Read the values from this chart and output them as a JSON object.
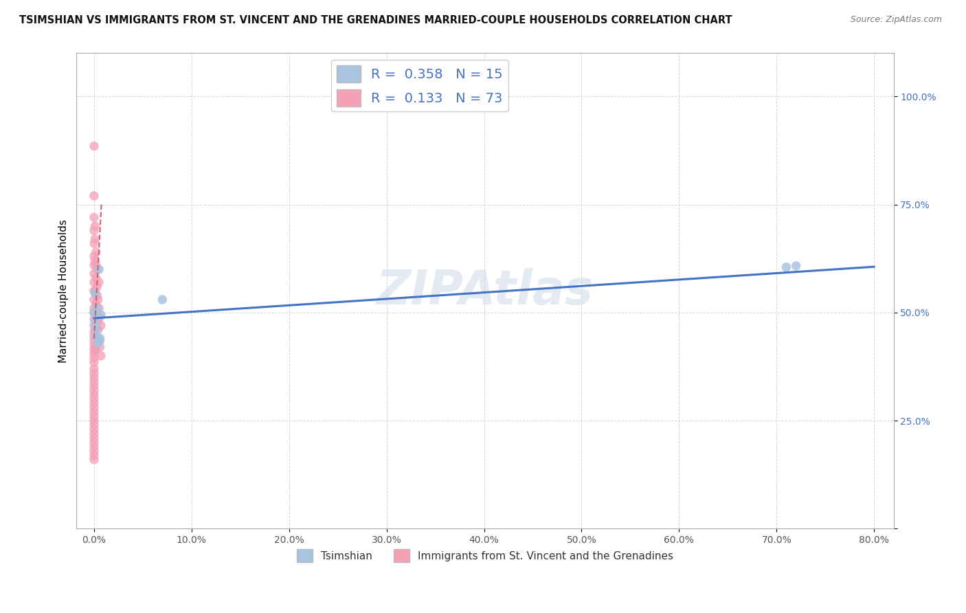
{
  "title": "TSIMSHIAN VS IMMIGRANTS FROM ST. VINCENT AND THE GRENADINES MARRIED-COUPLE HOUSEHOLDS CORRELATION CHART",
  "source": "Source: ZipAtlas.com",
  "ylabel": "Married-couple Households",
  "legend_top_ts": "R =  0.358   N = 15",
  "legend_top_imm": "R =  0.133   N = 73",
  "legend_bottom_ts": "Tsimshian",
  "legend_bottom_imm": "Immigrants from St. Vincent and the Grenadines",
  "ts_R": 0.358,
  "ts_N": 15,
  "imm_R": 0.133,
  "imm_N": 73,
  "ts_color": "#a8c4e0",
  "ts_line_color": "#4472c4",
  "imm_color": "#f4a0b5",
  "imm_line_color": "#d06070",
  "label_color": "#4472c4",
  "xlim_min": -0.018,
  "xlim_max": 0.82,
  "ylim_min": 0.0,
  "ylim_max": 1.1,
  "xticks": [
    0.0,
    0.1,
    0.2,
    0.3,
    0.4,
    0.5,
    0.6,
    0.7,
    0.8
  ],
  "xticklabels": [
    "0.0%",
    "10.0%",
    "20.0%",
    "30.0%",
    "40.0%",
    "50.0%",
    "60.0%",
    "70.0%",
    "80.0%"
  ],
  "ytick_values": [
    0.0,
    0.25,
    0.5,
    0.75,
    1.0
  ],
  "yticklabels": [
    "",
    "25.0%",
    "50.0%",
    "75.0%",
    "100.0%"
  ],
  "grid_color": "#cccccc",
  "background_color": "#ffffff",
  "watermark": "ZIPAtlas",
  "marker_size": 95,
  "ts_x": [
    0.0,
    0.001,
    0.001,
    0.002,
    0.002,
    0.003,
    0.004,
    0.005,
    0.006,
    0.006,
    0.007,
    0.07,
    0.71,
    0.72,
    0.003
  ],
  "ts_y": [
    0.5,
    0.545,
    0.48,
    0.465,
    0.445,
    0.445,
    0.43,
    0.6,
    0.435,
    0.44,
    0.495,
    0.53,
    0.605,
    0.608,
    0.51
  ],
  "imm_x": [
    0.0,
    0.0,
    0.0,
    0.0,
    0.0,
    0.0,
    0.0,
    0.0,
    0.0,
    0.0,
    0.0,
    0.0,
    0.0,
    0.0,
    0.0,
    0.0,
    0.0,
    0.0,
    0.0,
    0.0,
    0.0,
    0.0,
    0.0,
    0.0,
    0.0,
    0.0,
    0.0,
    0.0,
    0.0,
    0.0,
    0.0,
    0.0,
    0.0,
    0.0,
    0.0,
    0.0,
    0.0,
    0.0,
    0.0,
    0.0,
    0.001,
    0.001,
    0.001,
    0.001,
    0.001,
    0.002,
    0.002,
    0.002,
    0.002,
    0.003,
    0.003,
    0.003,
    0.004,
    0.004,
    0.005,
    0.005,
    0.006,
    0.006,
    0.007,
    0.007,
    0.002,
    0.001,
    0.003,
    0.004,
    0.005,
    0.001,
    0.002,
    0.003,
    0.0,
    0.0,
    0.0,
    0.0,
    0.0
  ],
  "imm_y": [
    0.885,
    0.77,
    0.72,
    0.69,
    0.66,
    0.63,
    0.61,
    0.59,
    0.57,
    0.55,
    0.53,
    0.51,
    0.5,
    0.485,
    0.47,
    0.455,
    0.445,
    0.435,
    0.425,
    0.415,
    0.405,
    0.395,
    0.385,
    0.37,
    0.36,
    0.35,
    0.34,
    0.33,
    0.32,
    0.31,
    0.3,
    0.29,
    0.28,
    0.27,
    0.26,
    0.25,
    0.24,
    0.23,
    0.22,
    0.21,
    0.62,
    0.55,
    0.5,
    0.46,
    0.41,
    0.58,
    0.52,
    0.47,
    0.42,
    0.56,
    0.5,
    0.44,
    0.53,
    0.46,
    0.51,
    0.44,
    0.49,
    0.42,
    0.47,
    0.4,
    0.61,
    0.67,
    0.54,
    0.48,
    0.57,
    0.7,
    0.64,
    0.6,
    0.2,
    0.19,
    0.18,
    0.17,
    0.16
  ],
  "ts_trend_x0": 0.0,
  "ts_trend_x1": 0.8,
  "ts_trend_y0": 0.487,
  "ts_trend_y1": 0.606,
  "imm_trend_x0": 0.0,
  "imm_trend_x1": 0.0075,
  "imm_trend_y0": 0.44,
  "imm_trend_y1": 0.75
}
